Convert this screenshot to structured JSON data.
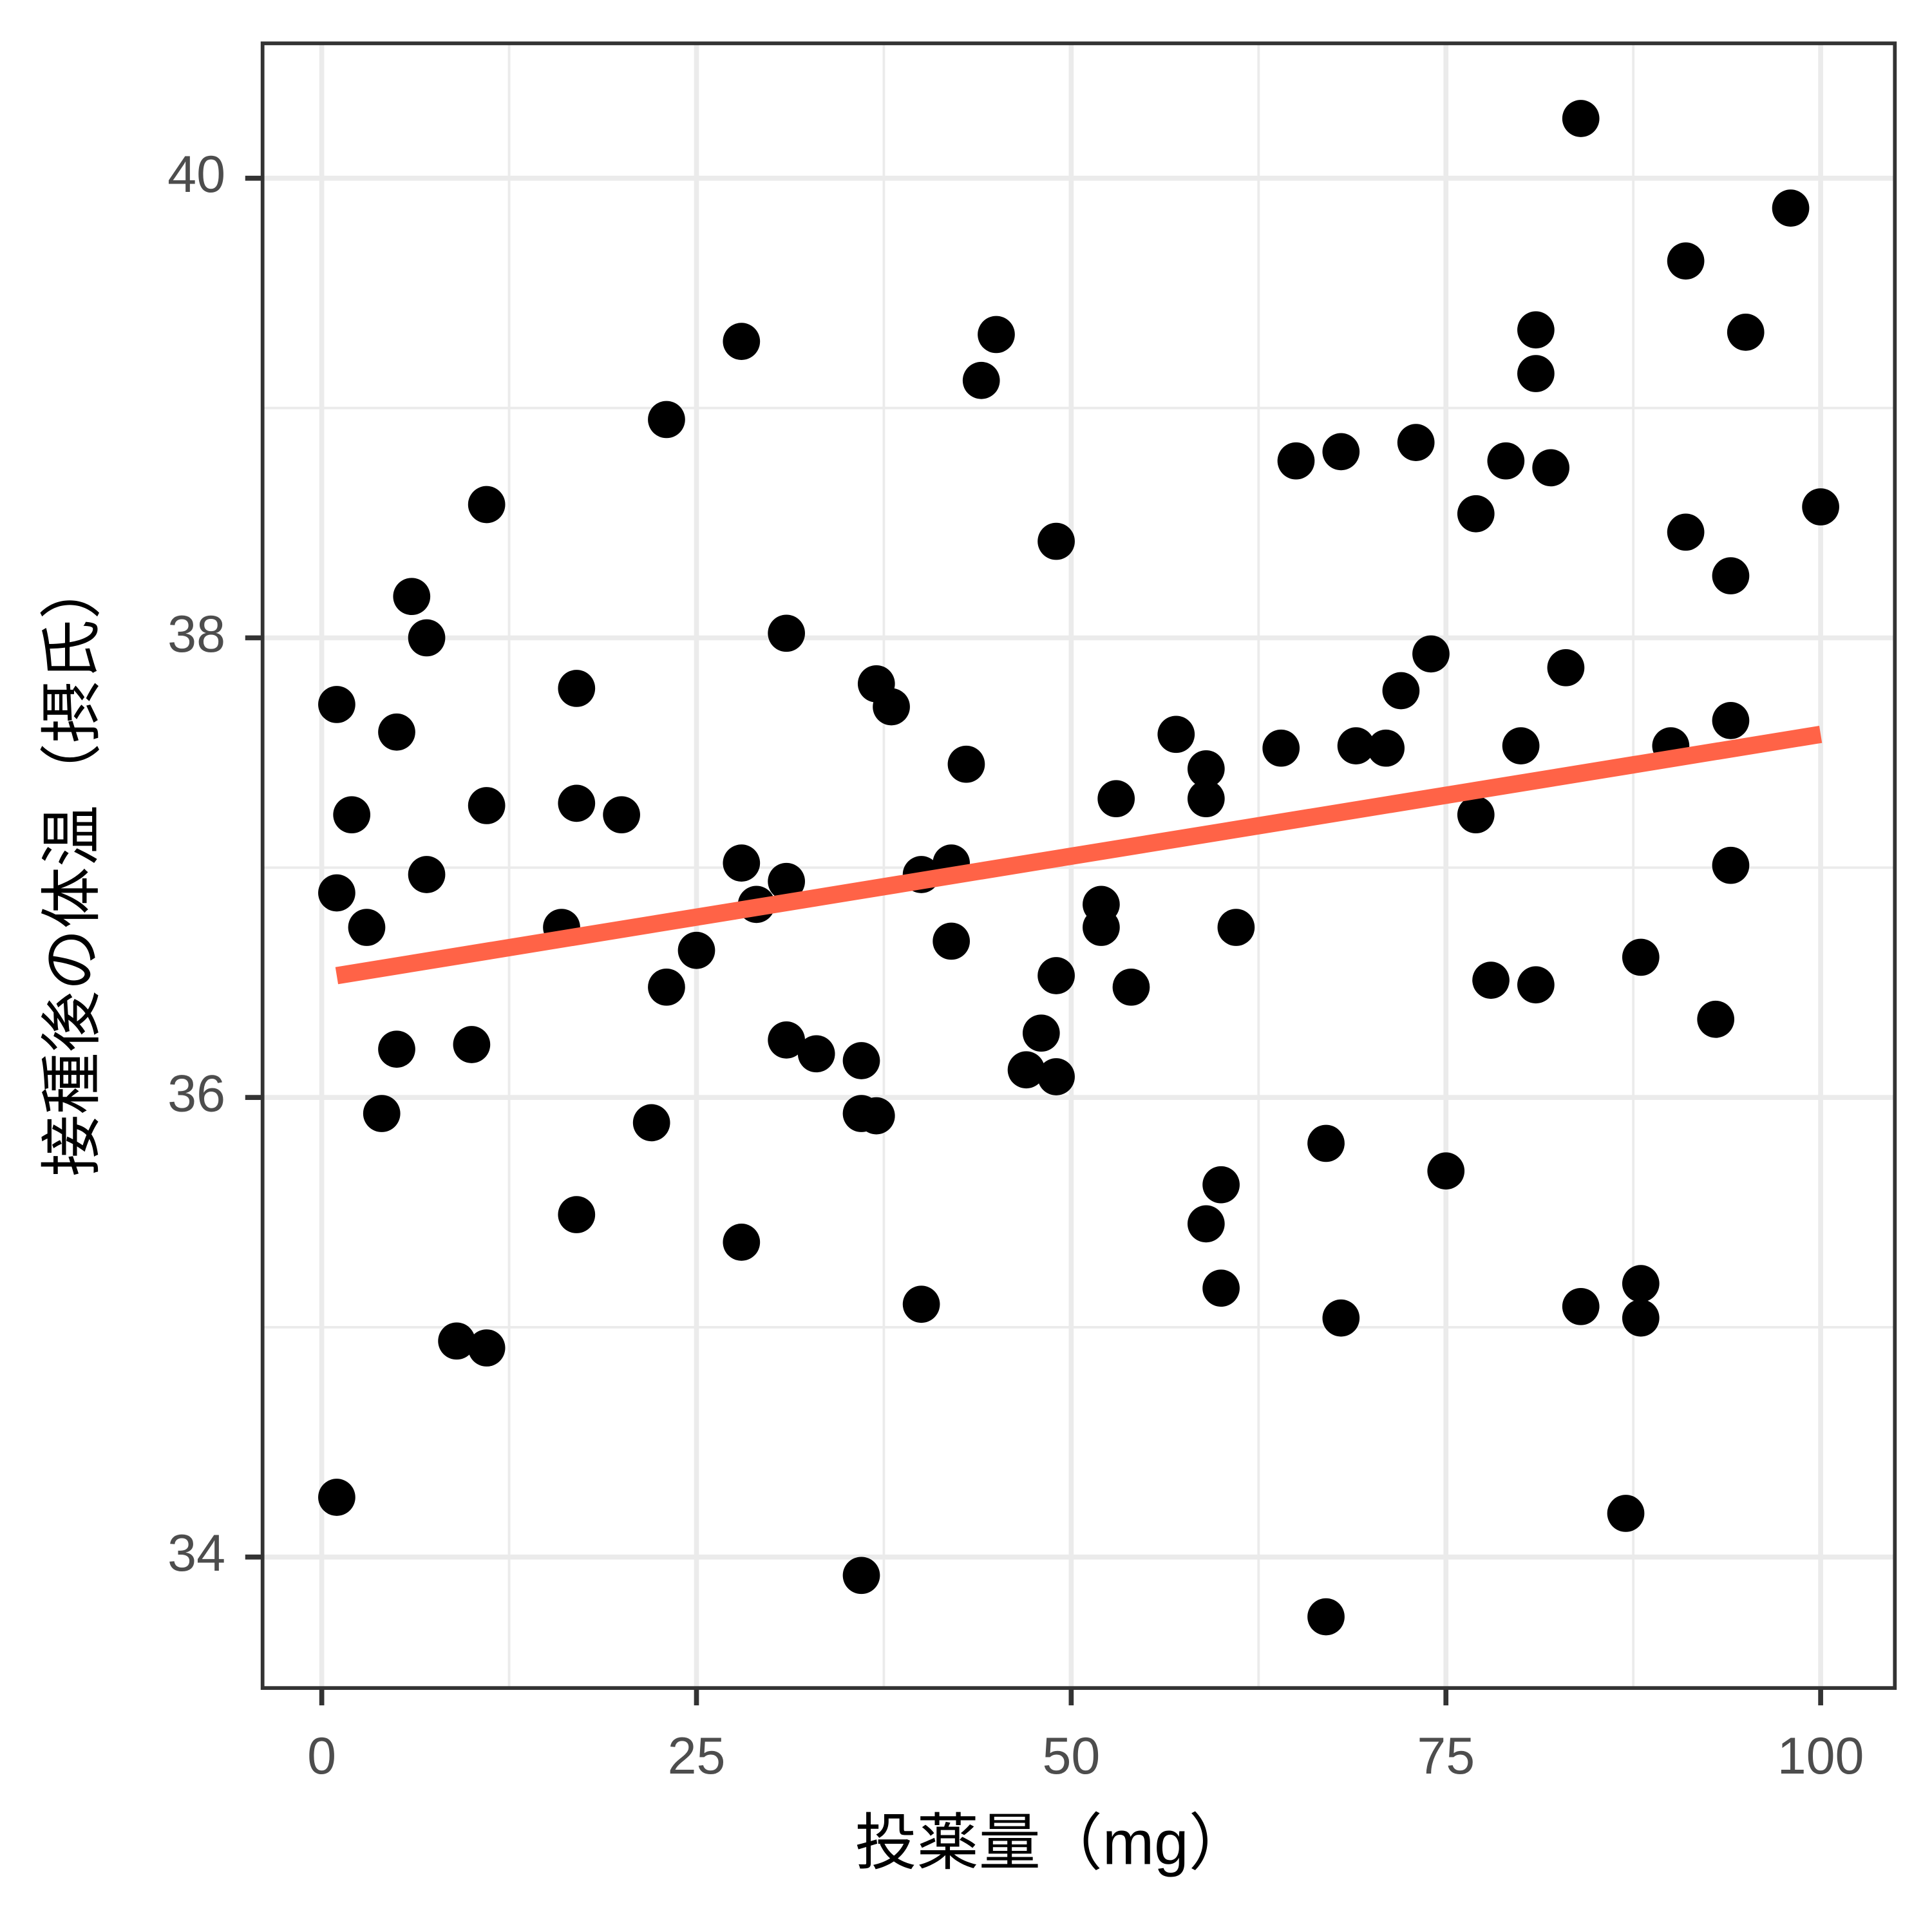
{
  "chart_data": {
    "type": "scatter",
    "xlabel": "投薬量（mg）",
    "ylabel": "接種後の体温（摂氏）",
    "xlim": [
      -3.95,
      104.95
    ],
    "ylim": [
      33.43,
      40.587
    ],
    "xticks": [
      0,
      25,
      50,
      75,
      100
    ],
    "yticks": [
      34,
      36,
      38,
      40
    ],
    "x_minor_ticks": [
      12.5,
      37.5,
      62.5,
      87.5
    ],
    "y_minor_ticks": [
      35,
      37,
      39
    ],
    "grid": true,
    "color": "#000000",
    "x": [
      1,
      1,
      1,
      2,
      3,
      4,
      5,
      5,
      6,
      7,
      7,
      9,
      10,
      11,
      11,
      11,
      16,
      17,
      17,
      17,
      20,
      22,
      23,
      23,
      25,
      28,
      28,
      28,
      29,
      31,
      31,
      31,
      33,
      36,
      36,
      36,
      37,
      37,
      38,
      40,
      40,
      42,
      42,
      43,
      44,
      45,
      47,
      48,
      49,
      49,
      49,
      52,
      52,
      53,
      54,
      57,
      59,
      59,
      59,
      60,
      60,
      61,
      64,
      65,
      67,
      67,
      68,
      68,
      69,
      71,
      72,
      73,
      74,
      75,
      77,
      77,
      78,
      79,
      80,
      81,
      81,
      81,
      82,
      83,
      84,
      84,
      87,
      88,
      88,
      88,
      90,
      91,
      91,
      93,
      94,
      94,
      94,
      95,
      98,
      100
    ],
    "values": [
      37.71,
      36.89,
      34.26,
      37.23,
      36.74,
      35.93,
      37.59,
      36.21,
      38.18,
      38.0,
      36.97,
      34.94,
      36.23,
      38.58,
      37.27,
      34.91,
      36.74,
      37.78,
      37.28,
      35.49,
      37.23,
      35.89,
      38.95,
      36.48,
      36.64,
      39.29,
      37.02,
      35.37,
      36.84,
      38.02,
      36.94,
      36.25,
      36.19,
      36.16,
      35.93,
      33.92,
      37.8,
      35.92,
      37.7,
      36.97,
      35.1,
      37.02,
      36.68,
      37.45,
      39.12,
      39.32,
      36.12,
      36.28,
      38.42,
      36.53,
      36.09,
      36.84,
      36.74,
      37.3,
      36.48,
      37.58,
      37.43,
      37.3,
      35.45,
      35.62,
      35.17,
      36.74,
      37.52,
      38.77,
      35.8,
      33.74,
      38.81,
      35.04,
      37.53,
      37.52,
      37.77,
      38.85,
      37.93,
      35.68,
      38.54,
      37.23,
      36.51,
      38.77,
      37.53,
      39.34,
      39.15,
      36.49,
      38.74,
      37.87,
      40.26,
      35.09,
      34.19,
      36.61,
      35.19,
      35.04,
      37.53,
      39.64,
      38.46,
      36.34,
      38.27,
      37.64,
      37.01,
      39.33,
      39.87,
      38.57
    ],
    "trend_line": {
      "color": "#ff6347",
      "x": [
        1,
        100
      ],
      "values": [
        36.53,
        37.58
      ]
    }
  }
}
